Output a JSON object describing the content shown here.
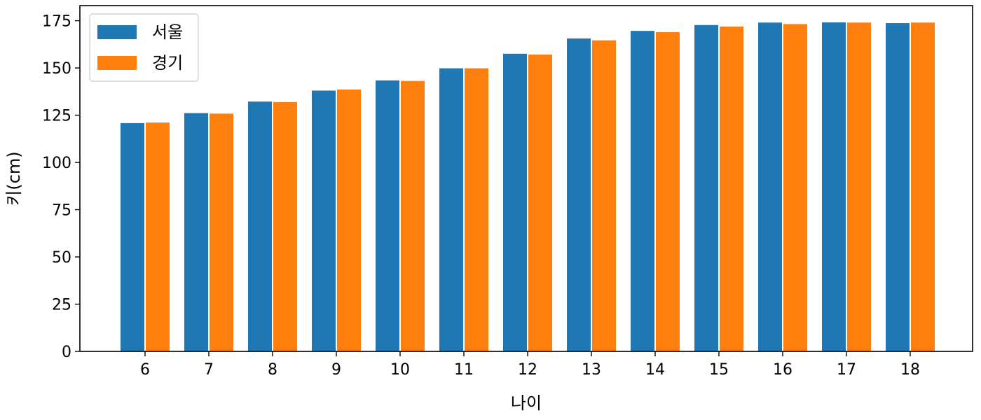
{
  "chart_data": {
    "type": "bar",
    "title": "",
    "xlabel": "나이",
    "ylabel": "키(cm)",
    "categories": [
      "6",
      "7",
      "8",
      "9",
      "10",
      "11",
      "12",
      "13",
      "14",
      "15",
      "16",
      "17",
      "18"
    ],
    "series": [
      {
        "name": "서울",
        "color": "#1f77b4",
        "values": [
          121.0,
          126.3,
          132.4,
          138.2,
          143.6,
          150.0,
          157.7,
          165.8,
          169.8,
          172.9,
          174.2,
          174.3,
          173.9
        ]
      },
      {
        "name": "경기",
        "color": "#ff7f0e",
        "values": [
          121.3,
          126.0,
          132.1,
          138.8,
          143.3,
          150.0,
          157.3,
          164.8,
          169.1,
          172.1,
          173.4,
          174.2,
          174.2
        ]
      }
    ],
    "ylim": [
      0,
      183
    ],
    "yticks": [
      0,
      25,
      50,
      75,
      100,
      125,
      150,
      175
    ],
    "grid": false,
    "legend_position": "top-left"
  }
}
